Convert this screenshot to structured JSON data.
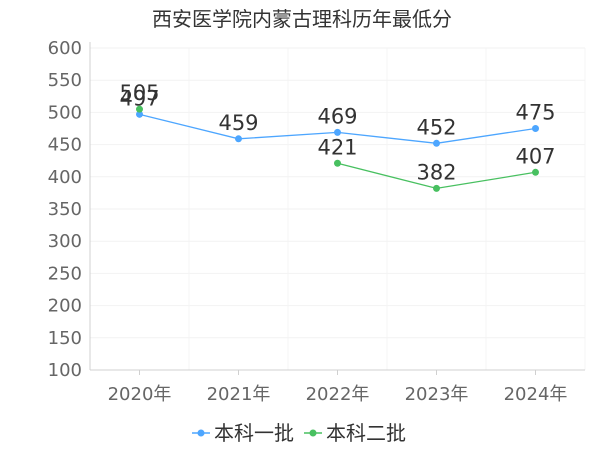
{
  "chart_data": {
    "type": "line",
    "title": "西安医学院内蒙古理科历年最低分",
    "categories": [
      "2020年",
      "2021年",
      "2022年",
      "2023年",
      "2024年"
    ],
    "y_ticks": [
      100,
      150,
      200,
      250,
      300,
      350,
      400,
      450,
      500,
      550,
      600
    ],
    "ylim": [
      100,
      600
    ],
    "grid": true,
    "legend_position": "bottom",
    "series": [
      {
        "name": "本科一批",
        "color": "#4da6ff",
        "values": [
          497,
          459,
          469,
          452,
          475
        ]
      },
      {
        "name": "本科二批",
        "color": "#48c060",
        "values": [
          505,
          null,
          421,
          382,
          407
        ]
      }
    ]
  }
}
